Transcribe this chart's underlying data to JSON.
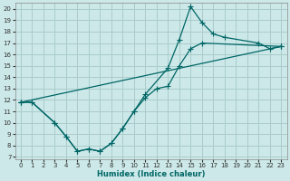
{
  "title": "",
  "xlabel": "Humidex (Indice chaleur)",
  "bg_color": "#cce8e8",
  "grid_color": "#aacccc",
  "line_color": "#006666",
  "xlim": [
    -0.5,
    23.5
  ],
  "ylim": [
    6.8,
    20.5
  ],
  "xticks": [
    0,
    1,
    2,
    3,
    4,
    5,
    6,
    7,
    8,
    9,
    10,
    11,
    12,
    13,
    14,
    15,
    16,
    17,
    18,
    19,
    20,
    21,
    22,
    23
  ],
  "yticks": [
    7,
    8,
    9,
    10,
    11,
    12,
    13,
    14,
    15,
    16,
    17,
    18,
    19,
    20
  ],
  "line1_x": [
    0,
    1,
    3,
    4,
    5,
    6,
    7,
    8,
    9,
    10,
    11,
    13,
    14,
    15,
    16,
    17,
    18,
    21,
    22,
    23
  ],
  "line1_y": [
    11.8,
    11.8,
    10.0,
    8.8,
    7.5,
    7.7,
    7.5,
    8.2,
    9.5,
    11.0,
    12.5,
    14.8,
    17.3,
    20.2,
    18.8,
    17.8,
    17.5,
    17.0,
    16.5,
    16.7
  ],
  "line2_x": [
    0,
    1,
    3,
    4,
    5,
    6,
    7,
    8,
    9,
    10,
    11,
    12,
    13,
    14,
    15,
    16,
    23
  ],
  "line2_y": [
    11.8,
    11.8,
    10.0,
    8.8,
    7.5,
    7.7,
    7.5,
    8.2,
    9.5,
    11.0,
    12.2,
    13.0,
    13.2,
    15.0,
    16.5,
    17.0,
    16.7
  ],
  "line3_x": [
    0,
    23
  ],
  "line3_y": [
    11.8,
    16.7
  ]
}
